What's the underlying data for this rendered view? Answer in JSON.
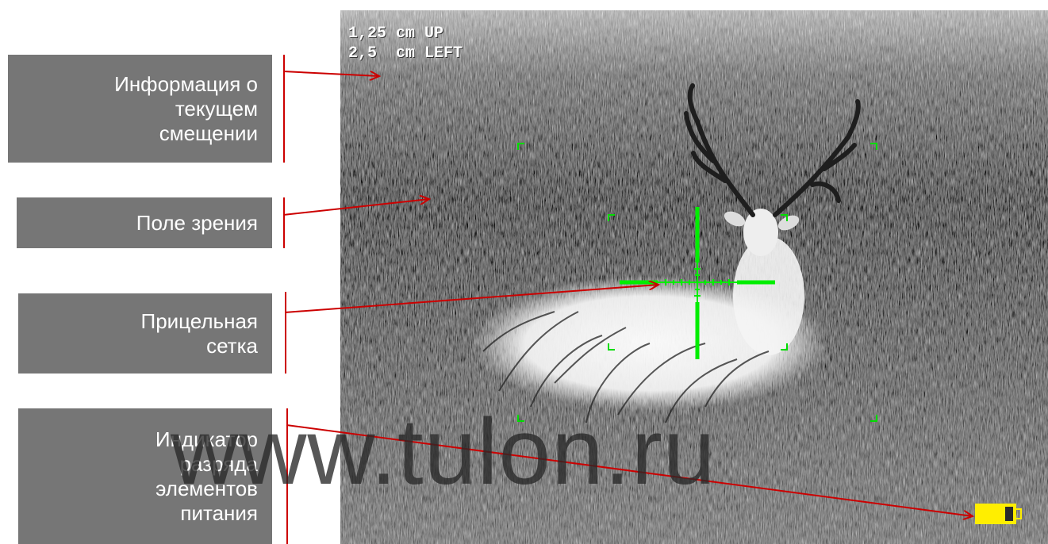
{
  "labels": {
    "offset_info": {
      "lines": [
        "Информация о",
        "текущем",
        "смещении"
      ]
    },
    "field_of_view": {
      "lines": [
        "Поле зрения"
      ]
    },
    "reticle": {
      "lines": [
        "Прицельная",
        "сетка"
      ]
    },
    "battery_indicator": {
      "lines": [
        "Индикатор",
        "разряда",
        "элементов",
        "питания"
      ]
    }
  },
  "osd": {
    "line1": "1,25 cm UP",
    "line2": "2,5  cm LEFT"
  },
  "watermark": "www.tulon.ru",
  "colors": {
    "label_box": "#767676",
    "label_text": "#ffffff",
    "pointer_lines": "#cc0000",
    "reticle": "#00ee00",
    "battery": "#ffee00",
    "osd_text": "#ffffff"
  },
  "icons": {
    "reticle": "crosshair-icon",
    "battery": "battery-icon",
    "frame_corners": "corner-bracket-icon"
  }
}
